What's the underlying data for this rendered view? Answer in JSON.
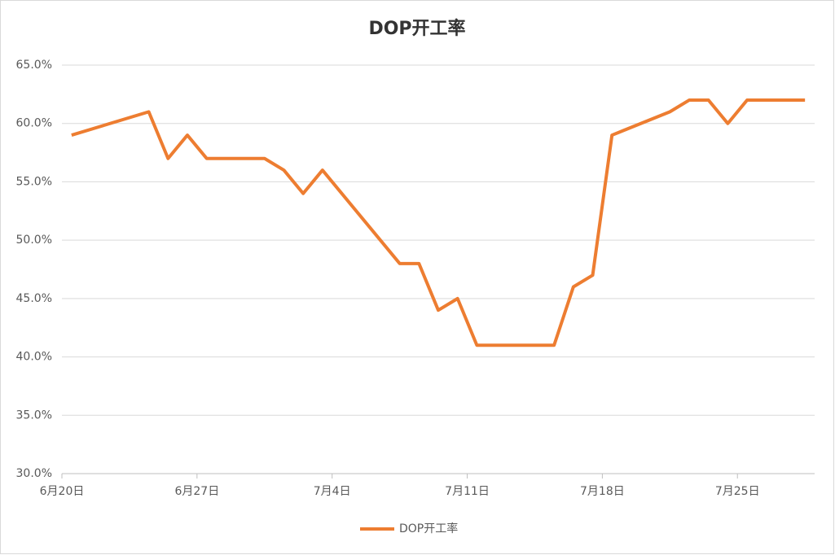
{
  "chart_data": {
    "type": "line",
    "title": "DOP开工率",
    "x": [
      "6月20日",
      "6月24日",
      "6月25日",
      "6月26日",
      "6月27日",
      "6月30日",
      "7月1日",
      "7月2日",
      "7月3日",
      "7月7日",
      "7月8日",
      "7月9日",
      "7月10日",
      "7月11日",
      "7月15日",
      "7月16日",
      "7月17日",
      "7月18日",
      "7月21日",
      "7月22日",
      "7月23日",
      "7月24日",
      "7月25日",
      "7月28日"
    ],
    "series": [
      {
        "name": "DOP开工率",
        "color": "#ed7d31",
        "values": [
          59,
          61,
          57,
          59,
          57,
          57,
          56,
          54,
          56,
          48,
          48,
          44,
          45,
          41,
          41,
          46,
          47,
          59,
          61,
          62,
          62,
          60,
          62,
          62
        ]
      }
    ],
    "xlim": [
      "6月20日",
      "7月29日"
    ],
    "xticks": [
      "6月20日",
      "6月27日",
      "7月4日",
      "7月11日",
      "7月18日",
      "7月25日"
    ],
    "ylim": [
      30,
      65
    ],
    "yticks": [
      {
        "value": 30,
        "label": "30.0%"
      },
      {
        "value": 35,
        "label": "35.0%"
      },
      {
        "value": 40,
        "label": "40.0%"
      },
      {
        "value": 45,
        "label": "45.0%"
      },
      {
        "value": 50,
        "label": "50.0%"
      },
      {
        "value": 55,
        "label": "55.0%"
      },
      {
        "value": 60,
        "label": "60.0%"
      },
      {
        "value": 65,
        "label": "65.0%"
      }
    ],
    "grid": true,
    "legend": "bottom"
  }
}
